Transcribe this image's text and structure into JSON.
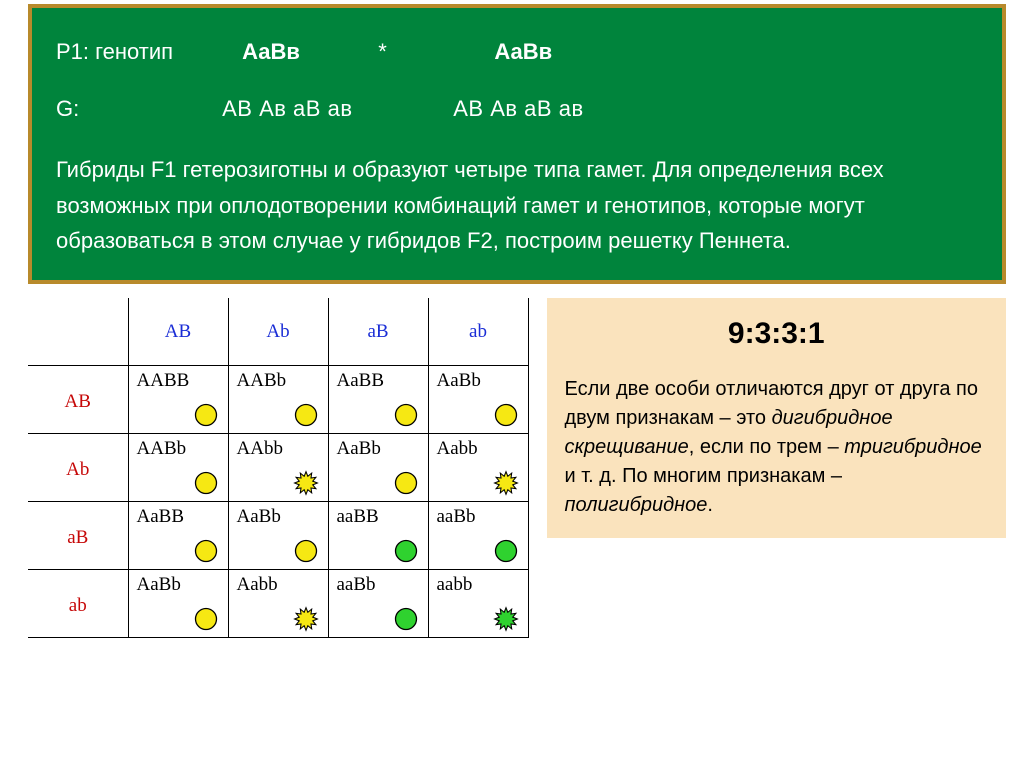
{
  "top": {
    "p1_label": "Р1:  генотип",
    "genotype1": "АаВв",
    "star": "*",
    "genotype2": "АаВв",
    "g_label": "G:",
    "gametes1": "АВ  Ав  аВ  ав",
    "gametes2": "АВ  Ав  аВ  ав",
    "body": "Гибриды F1 гетерозиготны и образуют четыре типа гамет. Для определения всех возможных при оплодотворении комбинаций гамет и генотипов, которые могут образоваться в этом случае у гибридов F2, построим решетку Пеннета."
  },
  "punnett": {
    "col_headers": [
      "AB",
      "Ab",
      "aB",
      "ab"
    ],
    "row_headers": [
      "AB",
      "Ab",
      "aB",
      "ab"
    ],
    "colors": {
      "yellow": "#f6e813",
      "green": "#2fd22f",
      "stroke": "#000000",
      "col_head": "#1a2dd6",
      "row_head": "#c60808"
    },
    "cells": [
      [
        {
          "geno": "AABB",
          "color": "yellow",
          "shape": "round"
        },
        {
          "geno": "AABb",
          "color": "yellow",
          "shape": "round"
        },
        {
          "geno": "AaBB",
          "color": "yellow",
          "shape": "round"
        },
        {
          "geno": "AaBb",
          "color": "yellow",
          "shape": "round"
        }
      ],
      [
        {
          "geno": "AABb",
          "color": "yellow",
          "shape": "round"
        },
        {
          "geno": "AAbb",
          "color": "yellow",
          "shape": "wrinkled"
        },
        {
          "geno": "AaBb",
          "color": "yellow",
          "shape": "round"
        },
        {
          "geno": "Aabb",
          "color": "yellow",
          "shape": "wrinkled"
        }
      ],
      [
        {
          "geno": "AaBB",
          "color": "yellow",
          "shape": "round"
        },
        {
          "geno": "AaBb",
          "color": "yellow",
          "shape": "round"
        },
        {
          "geno": "aaBB",
          "color": "green",
          "shape": "round"
        },
        {
          "geno": "aaBb",
          "color": "green",
          "shape": "round"
        }
      ],
      [
        {
          "geno": "AaBb",
          "color": "yellow",
          "shape": "round"
        },
        {
          "geno": "Aabb",
          "color": "yellow",
          "shape": "wrinkled"
        },
        {
          "geno": "aaBb",
          "color": "green",
          "shape": "round"
        },
        {
          "geno": "aabb",
          "color": "green",
          "shape": "wrinkled"
        }
      ]
    ]
  },
  "ratio": {
    "title": "9:3:3:1",
    "text_pre": "Если две особи отличаются друг от друга по двум признакам – это ",
    "term1": "дигибридное скрещивание",
    "text_mid1": ", если по трем – ",
    "term2": "тригибридное",
    "text_mid2": " и т. д. По многим признакам – ",
    "term3": "полигибридное",
    "text_end": "."
  }
}
